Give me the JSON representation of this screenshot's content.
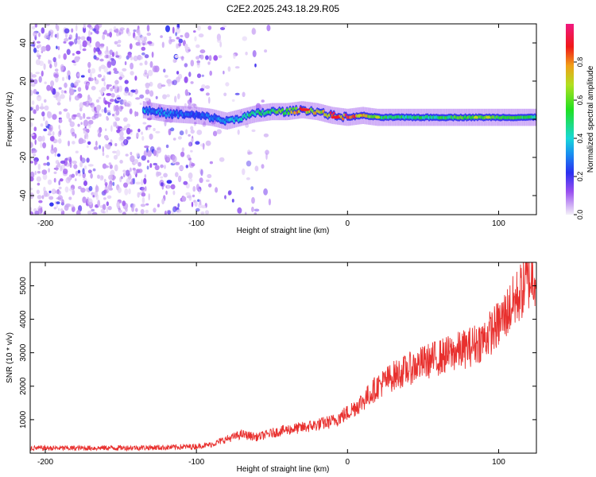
{
  "title": "C2E2.2025.243.18.29.R05",
  "colors": {
    "snr_line": "#e8302e",
    "scatter": "#7a1cf0",
    "colorbar_stops": [
      "#e8e4f0",
      "#7a1cf0",
      "#1a2ef0",
      "#18d8e8",
      "#20e020",
      "#e8e020",
      "#f08018",
      "#f01818",
      "#f01878"
    ]
  },
  "chart_data": [
    {
      "type": "heatmap",
      "title": "C2E2.2025.243.18.29.R05",
      "xlabel": "Height of straight line (km)",
      "ylabel": "Frequency (Hz)",
      "xlim": [
        -210,
        125
      ],
      "ylim": [
        -50,
        50
      ],
      "x_ticks": [
        -200,
        -100,
        0,
        100
      ],
      "y_ticks": [
        -40,
        -20,
        0,
        20,
        40
      ],
      "colorbar": {
        "label": "Normalized spectral amplitude",
        "range": [
          0.0,
          1.0
        ],
        "ticks": [
          "0.0",
          "0.2",
          "0.4",
          "0.6",
          "0.8"
        ]
      },
      "noise_region_km": [
        -210,
        -90
      ],
      "signal_track": {
        "x": [
          -135,
          -120,
          -100,
          -90,
          -80,
          -70,
          -60,
          -50,
          -40,
          -30,
          -20,
          -10,
          0,
          10,
          20,
          40,
          60,
          80,
          100,
          125
        ],
        "y": [
          5,
          3,
          2,
          1,
          -1,
          1,
          3,
          4,
          4,
          5,
          4,
          2,
          1,
          2,
          1,
          1,
          1,
          1,
          1,
          1
        ],
        "amplitude": [
          0.35,
          0.3,
          0.25,
          0.3,
          0.35,
          0.4,
          0.5,
          0.55,
          0.6,
          0.8,
          0.7,
          0.85,
          0.9,
          0.75,
          0.55,
          0.5,
          0.5,
          0.6,
          0.55,
          0.5
        ]
      }
    },
    {
      "type": "line",
      "xlabel": "Height of straight line (km)",
      "ylabel": "SNR (10 * v/v)",
      "xlim": [
        -210,
        125
      ],
      "ylim": [
        0,
        5700
      ],
      "x_ticks": [
        -200,
        -100,
        0,
        100
      ],
      "y_ticks": [
        1000,
        2000,
        3000,
        4000,
        5000
      ],
      "series": [
        {
          "name": "SNR",
          "x": [
            -210,
            -180,
            -150,
            -120,
            -100,
            -90,
            -80,
            -70,
            -60,
            -50,
            -40,
            -30,
            -20,
            -10,
            0,
            10,
            20,
            30,
            40,
            50,
            60,
            70,
            80,
            90,
            100,
            110,
            120,
            125
          ],
          "y": [
            150,
            150,
            160,
            170,
            200,
            260,
            420,
            560,
            480,
            600,
            700,
            760,
            850,
            950,
            1200,
            1550,
            2000,
            2300,
            2500,
            2700,
            2850,
            3000,
            3150,
            3400,
            3850,
            4500,
            5200,
            5400
          ]
        }
      ]
    }
  ]
}
